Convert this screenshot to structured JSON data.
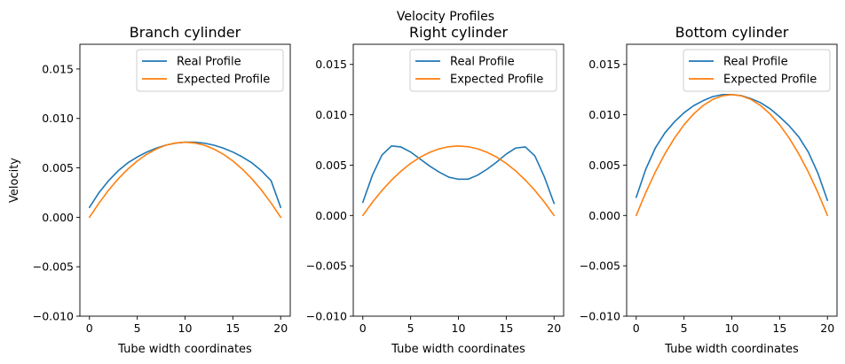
{
  "figure": {
    "suptitle": "Velocity Profiles"
  },
  "legend_entries": [
    "Real Profile",
    "Expected Profile"
  ],
  "chart_data": [
    {
      "type": "line",
      "title": "Branch cylinder",
      "xlabel": "Tube width coordinates",
      "ylabel": "Velocity",
      "xlim": [
        -1,
        21
      ],
      "ylim": [
        -0.01,
        0.0175
      ],
      "xticks": [
        0,
        5,
        10,
        15,
        20
      ],
      "xtick_labels": [
        "0",
        "5",
        "10",
        "15",
        "20"
      ],
      "yticks": [
        -0.01,
        -0.005,
        0.0,
        0.005,
        0.01,
        0.015
      ],
      "ytick_labels": [
        "−0.010",
        "−0.005",
        "0.000",
        "0.005",
        "0.010",
        "0.015"
      ],
      "legend_position": "upper right",
      "grid": false,
      "x": [
        0,
        1,
        2,
        3,
        4,
        5,
        6,
        7,
        8,
        9,
        10,
        11,
        12,
        13,
        14,
        15,
        16,
        17,
        18,
        19,
        20
      ],
      "series": [
        {
          "name": "Real Profile",
          "color": "#1f77b4",
          "values": [
            0.001,
            0.0025,
            0.0037,
            0.0047,
            0.0055,
            0.0061,
            0.0066,
            0.007,
            0.0073,
            0.0075,
            0.0076,
            0.0076,
            0.0075,
            0.0073,
            0.007,
            0.0066,
            0.0061,
            0.0055,
            0.0047,
            0.0037,
            0.001
          ]
        },
        {
          "name": "Expected Profile",
          "color": "#ff7f0e",
          "values": [
            0.0,
            0.00144,
            0.00274,
            0.00388,
            0.00486,
            0.0057,
            0.00638,
            0.00691,
            0.0073,
            0.00752,
            0.0076,
            0.00752,
            0.0073,
            0.00691,
            0.00638,
            0.0057,
            0.00486,
            0.00388,
            0.00274,
            0.00144,
            0.0
          ]
        }
      ]
    },
    {
      "type": "line",
      "title": "Right cylinder",
      "xlabel": "Tube width coordinates",
      "ylabel": "",
      "xlim": [
        -1,
        21
      ],
      "ylim": [
        -0.01,
        0.01
      ],
      "xticks": [
        0,
        5,
        10,
        15,
        20
      ],
      "xtick_labels": [
        "0",
        "5",
        "10",
        "15",
        "20"
      ],
      "yticks": [
        -0.01,
        -0.005,
        0.0,
        0.005,
        0.01,
        0.015
      ],
      "ytick_labels": [
        "−0.010",
        "−0.005",
        "0.000",
        "0.005",
        "0.010",
        "0.015"
      ],
      "legend_position": "upper right",
      "grid": false,
      "x": [
        0,
        1,
        2,
        3,
        4,
        5,
        6,
        7,
        8,
        9,
        10,
        11,
        12,
        13,
        14,
        15,
        16,
        17,
        18,
        19,
        20
      ],
      "series": [
        {
          "name": "Real Profile",
          "color": "#1f77b4",
          "values": [
            0.0013,
            0.004,
            0.006,
            0.0069,
            0.0068,
            0.0063,
            0.0056,
            0.0049,
            0.0043,
            0.0038,
            0.0036,
            0.0036,
            0.004,
            0.0046,
            0.0053,
            0.0061,
            0.0067,
            0.0068,
            0.0059,
            0.0038,
            0.0012
          ]
        },
        {
          "name": "Expected Profile",
          "color": "#ff7f0e",
          "values": [
            0.0,
            0.00131,
            0.00248,
            0.00351,
            0.00441,
            0.00517,
            0.00579,
            0.00627,
            0.00662,
            0.00683,
            0.0069,
            0.00683,
            0.00662,
            0.00627,
            0.00579,
            0.00517,
            0.00441,
            0.00351,
            0.00248,
            0.00131,
            0.0
          ]
        }
      ]
    },
    {
      "type": "line",
      "title": "Bottom cylinder",
      "xlabel": "Tube width coordinates",
      "ylabel": "",
      "xlim": [
        -1,
        21
      ],
      "ylim": [
        -0.01,
        0.01
      ],
      "xticks": [
        0,
        5,
        10,
        15,
        20
      ],
      "xtick_labels": [
        "0",
        "5",
        "10",
        "15",
        "20"
      ],
      "yticks": [
        -0.01,
        -0.005,
        0.0,
        0.005,
        0.01,
        0.015
      ],
      "ytick_labels": [
        "−0.010",
        "−0.005",
        "0.000",
        "0.005",
        "0.010",
        "0.015"
      ],
      "legend_position": "upper right",
      "grid": false,
      "x": [
        0,
        1,
        2,
        3,
        4,
        5,
        6,
        7,
        8,
        9,
        10,
        11,
        12,
        13,
        14,
        15,
        16,
        17,
        18,
        19,
        20
      ],
      "series": [
        {
          "name": "Real Profile",
          "color": "#1f77b4",
          "values": [
            0.0018,
            0.0046,
            0.0067,
            0.0082,
            0.0093,
            0.0102,
            0.0109,
            0.0114,
            0.0118,
            0.012,
            0.012,
            0.0119,
            0.0116,
            0.0112,
            0.0106,
            0.0098,
            0.0089,
            0.0078,
            0.0063,
            0.0042,
            0.0015
          ]
        },
        {
          "name": "Expected Profile",
          "color": "#ff7f0e",
          "values": [
            0.0,
            0.00228,
            0.00432,
            0.00612,
            0.00768,
            0.009,
            0.01008,
            0.01092,
            0.01152,
            0.01188,
            0.012,
            0.01188,
            0.01152,
            0.01092,
            0.01008,
            0.009,
            0.00768,
            0.00612,
            0.00432,
            0.00228,
            0.0
          ]
        }
      ]
    }
  ]
}
